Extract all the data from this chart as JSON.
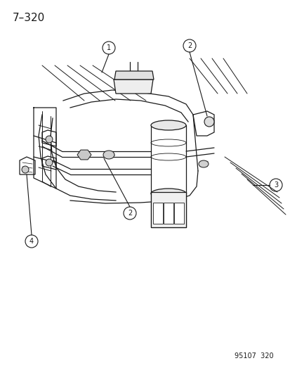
{
  "page_number": "7–320",
  "part_ref": "95107  320",
  "background_color": "#ffffff",
  "line_color": "#1a1a1a",
  "figsize": [
    4.14,
    5.33
  ],
  "dpi": 100,
  "title_fontsize": 11,
  "ref_fontsize": 7
}
